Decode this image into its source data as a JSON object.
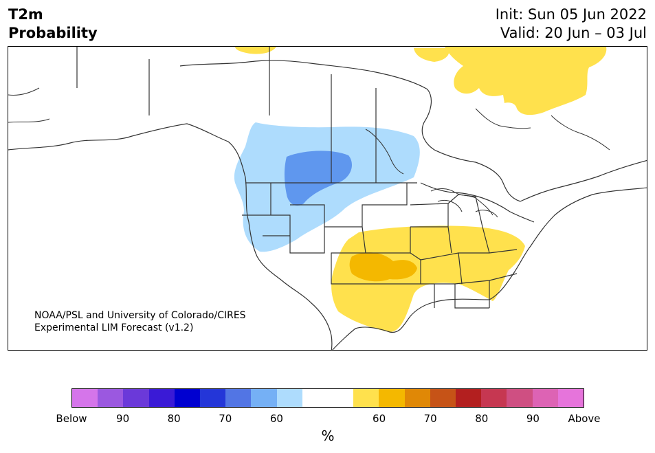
{
  "title": {
    "line1": "T2m",
    "line2": "Probability",
    "init": "Init: Sun 05 Jun 2022",
    "valid": "Valid: 20 Jun – 03 Jul"
  },
  "credit": {
    "line1": "NOAA/PSL and University of Colorado/CIRES",
    "line2": "Experimental LIM Forecast (v1.2)"
  },
  "colorbar": {
    "colors": [
      "#d575ea",
      "#9b58e0",
      "#6b39d9",
      "#3a1ad6",
      "#0000d0",
      "#2436d8",
      "#5275e4",
      "#75b0f5",
      "#aedcfd",
      "#ffffff",
      "#ffffff",
      "#ffe14d",
      "#f4b800",
      "#e08806",
      "#c65317",
      "#b31f1f",
      "#c63751",
      "#cf4f82",
      "#dd63b4",
      "#e674db"
    ],
    "tick_labels": [
      "Below",
      "90",
      "80",
      "70",
      "60",
      "60",
      "70",
      "80",
      "90",
      "Above"
    ],
    "unit": "%"
  },
  "map_colors": {
    "below_60": "#aedcfd",
    "below_70": "#75b0f5",
    "below_80": "#5f97ee",
    "above_60": "#ffe14d",
    "above_70": "#f4b800",
    "line": "#333333"
  }
}
